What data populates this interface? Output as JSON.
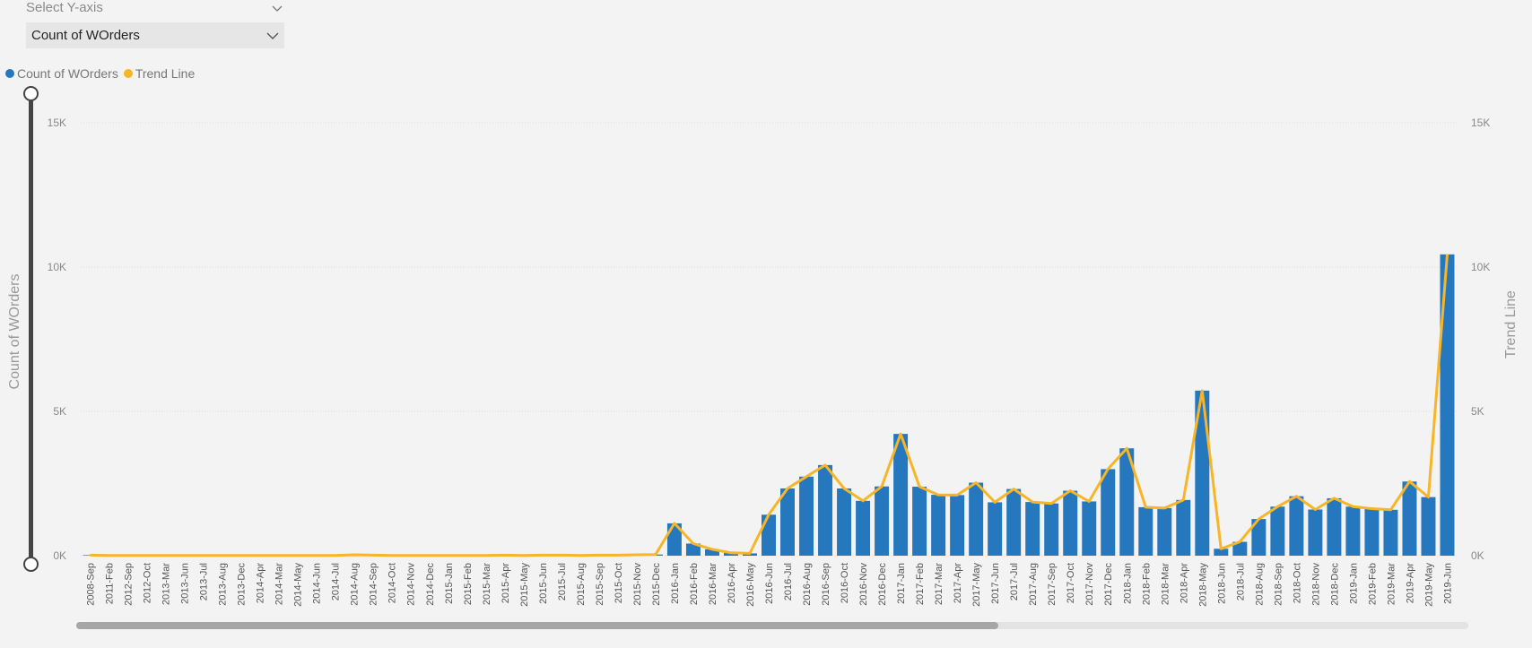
{
  "slicer": {
    "title": "Select Y-axis",
    "selected": "Count of WOrders"
  },
  "colors": {
    "bar": "#2678be",
    "trend": "#f7b527",
    "background": "#f3f3f3",
    "gridline": "#dddddd"
  },
  "chart_data": {
    "type": "bar",
    "categories": [
      "2008-Sep",
      "2011-Feb",
      "2012-Sep",
      "2012-Oct",
      "2013-Mar",
      "2013-Jun",
      "2013-Jul",
      "2013-Aug",
      "2013-Dec",
      "2014-Apr",
      "2014-Mar",
      "2014-May",
      "2014-Jun",
      "2014-Jul",
      "2014-Aug",
      "2014-Sep",
      "2014-Oct",
      "2014-Nov",
      "2014-Dec",
      "2015-Jan",
      "2015-Feb",
      "2015-Mar",
      "2015-Apr",
      "2015-May",
      "2015-Jun",
      "2015-Jul",
      "2015-Aug",
      "2015-Sep",
      "2015-Oct",
      "2015-Nov",
      "2015-Dec",
      "2016-Jan",
      "2016-Feb",
      "2016-Mar",
      "2016-Apr",
      "2016-May",
      "2016-Jun",
      "2016-Jul",
      "2016-Aug",
      "2016-Sep",
      "2016-Oct",
      "2016-Nov",
      "2016-Dec",
      "2017-Jan",
      "2017-Feb",
      "2017-Mar",
      "2017-Apr",
      "2017-May",
      "2017-Jun",
      "2017-Jul",
      "2017-Aug",
      "2017-Sep",
      "2017-Oct",
      "2017-Nov",
      "2017-Dec",
      "2018-Jan",
      "2018-Feb",
      "2018-Mar",
      "2018-Apr",
      "2018-May",
      "2018-Jun",
      "2018-Jul",
      "2018-Aug",
      "2018-Sep",
      "2018-Oct",
      "2018-Nov",
      "2018-Dec",
      "2019-Jan",
      "2019-Feb",
      "2019-Mar",
      "2019-Apr",
      "2019-May",
      "2019-Jun"
    ],
    "series": [
      {
        "name": "Count of WOrders",
        "kind": "bar",
        "color": "#2678be",
        "values": [
          20,
          10,
          10,
          10,
          10,
          10,
          10,
          10,
          10,
          10,
          10,
          10,
          10,
          10,
          30,
          20,
          10,
          10,
          10,
          10,
          10,
          10,
          20,
          10,
          20,
          20,
          10,
          20,
          20,
          30,
          40,
          1120,
          420,
          220,
          100,
          80,
          1420,
          2330,
          2740,
          3140,
          2330,
          1900,
          2400,
          4220,
          2390,
          2110,
          2100,
          2530,
          1850,
          2310,
          1860,
          1810,
          2250,
          1880,
          3000,
          3720,
          1680,
          1650,
          1930,
          5720,
          240,
          480,
          1270,
          1700,
          2060,
          1600,
          1990,
          1700,
          1630,
          1590,
          2570,
          2030,
          10440
        ]
      },
      {
        "name": "Trend Line",
        "kind": "line",
        "color": "#f7b527",
        "values": [
          20,
          10,
          10,
          10,
          10,
          10,
          10,
          10,
          10,
          10,
          10,
          10,
          10,
          10,
          30,
          20,
          10,
          10,
          10,
          10,
          10,
          10,
          20,
          10,
          20,
          20,
          10,
          20,
          20,
          30,
          40,
          1120,
          420,
          220,
          100,
          80,
          1420,
          2330,
          2740,
          3140,
          2330,
          1900,
          2400,
          4220,
          2390,
          2110,
          2100,
          2530,
          1850,
          2310,
          1860,
          1810,
          2250,
          1880,
          3000,
          3720,
          1680,
          1650,
          1930,
          5720,
          240,
          480,
          1270,
          1700,
          2060,
          1600,
          1990,
          1700,
          1630,
          1590,
          2570,
          2030,
          10440
        ]
      }
    ],
    "ylim": [
      0,
      15000
    ],
    "yticks": [
      "0K",
      "5K",
      "10K",
      "15K"
    ],
    "ylabel": "Count of WOrders",
    "y2label": "Trend Line",
    "xlabel": "",
    "title": "",
    "grid": true,
    "legend_position": "top-left"
  }
}
